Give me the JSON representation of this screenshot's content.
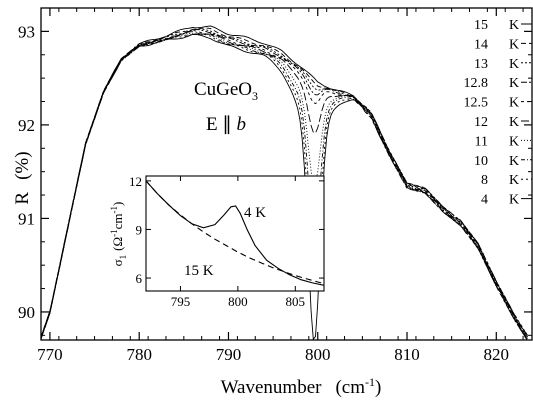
{
  "chart_data": [
    {
      "type": "line",
      "xlabel": "Wavenumber",
      "xlabel_unit": "(cm",
      "xlabel_unit_sup": "-1",
      "xlabel_unit_close": ")",
      "ylabel": "R",
      "ylabel_unit": "(%)",
      "xlim": [
        769,
        824
      ],
      "ylim": [
        89.7,
        93.25
      ],
      "xticks": [
        770,
        780,
        790,
        800,
        810,
        820
      ],
      "yticks": [
        90,
        91,
        92,
        93
      ],
      "grid": false,
      "legend_placement": "right",
      "annotation_line1": "CuGeO",
      "annotation_line1_sub": "3",
      "annotation_line2_pre": "E ∥ ",
      "annotation_line2_italic": "b",
      "base_curve": {
        "x": [
          769,
          770,
          772,
          774,
          776,
          778,
          780,
          782,
          784,
          786,
          788,
          790,
          792,
          794,
          796,
          798,
          800,
          802,
          804,
          806,
          808,
          810,
          812,
          814,
          816,
          818,
          820,
          822,
          823.5
        ],
        "y": [
          89.72,
          90.0,
          90.9,
          91.8,
          92.35,
          92.7,
          92.85,
          92.9,
          92.95,
          93.0,
          92.98,
          92.9,
          92.85,
          92.8,
          92.72,
          92.58,
          92.42,
          92.35,
          92.3,
          92.1,
          91.7,
          91.35,
          91.3,
          91.1,
          90.95,
          90.7,
          90.3,
          89.95,
          89.72
        ]
      },
      "series": [
        {
          "name": "15",
          "unit": "K",
          "dip": 0.0,
          "dash": "",
          "offset": 0.08
        },
        {
          "name": "14",
          "unit": "K",
          "dip": 0.02,
          "dash": "5,3",
          "offset": 0.05
        },
        {
          "name": "13",
          "unit": "K",
          "dip": 0.05,
          "dash": "2,2",
          "offset": 0.03
        },
        {
          "name": "12.8",
          "unit": "K",
          "dip": 0.1,
          "dash": "6,2,2,2",
          "offset": 0.02
        },
        {
          "name": "12.5",
          "unit": "K",
          "dip": 0.18,
          "dash": "3,3",
          "offset": 0.0
        },
        {
          "name": "12",
          "unit": "K",
          "dip": 0.45,
          "dash": "8,3",
          "offset": -0.01
        },
        {
          "name": "11",
          "unit": "K",
          "dip": 0.9,
          "dash": "1,2",
          "offset": -0.02
        },
        {
          "name": "10",
          "unit": "K",
          "dip": 1.35,
          "dash": "4,2,1,2",
          "offset": -0.03
        },
        {
          "name": "8",
          "unit": "K",
          "dip": 1.8,
          "dash": "2,3",
          "offset": -0.04
        },
        {
          "name": "4",
          "unit": "K",
          "dip": 2.25,
          "dash": "",
          "offset": -0.06
        }
      ]
    },
    {
      "type": "line",
      "role": "inset",
      "ylabel": "σ",
      "ylabel_sub": "1",
      "ylabel_unit": "(Ω",
      "ylabel_unit_sup1": "-1",
      "ylabel_unit_mid": "cm",
      "ylabel_unit_sup2": "-1",
      "ylabel_unit_close": ")",
      "xlim": [
        792,
        807.5
      ],
      "ylim": [
        5.2,
        12.3
      ],
      "xticks": [
        795,
        800,
        805
      ],
      "yticks": [
        6,
        9,
        12
      ],
      "series": [
        {
          "name": "4 K",
          "dash": "",
          "x": [
            792,
            793,
            794,
            795,
            796,
            797,
            798,
            798.8,
            799.4,
            799.8,
            800.2,
            800.8,
            801.5,
            802.5,
            803.5,
            804.5,
            805.5,
            806.5,
            807.5
          ],
          "y": [
            12.0,
            11.2,
            10.5,
            9.85,
            9.35,
            9.1,
            9.3,
            9.9,
            10.4,
            10.45,
            10.0,
            9.0,
            8.0,
            7.1,
            6.6,
            6.2,
            5.9,
            5.7,
            5.55
          ]
        },
        {
          "name": "15 K",
          "dash": "6,4",
          "x": [
            792,
            793,
            794,
            795,
            796,
            797,
            798,
            799,
            800,
            801,
            802,
            803,
            804,
            805,
            806,
            807,
            807.5
          ],
          "y": [
            12.0,
            11.2,
            10.5,
            9.9,
            9.35,
            8.85,
            8.4,
            8.0,
            7.6,
            7.25,
            6.95,
            6.65,
            6.4,
            6.15,
            5.95,
            5.75,
            5.65
          ]
        }
      ],
      "label_4K": "4 K",
      "label_15K": "15 K"
    }
  ]
}
